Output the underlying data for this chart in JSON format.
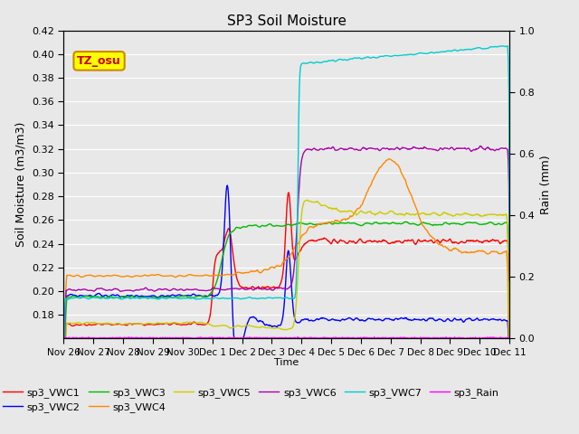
{
  "title": "SP3 Soil Moisture",
  "ylabel_left": "Soil Moisture (m3/m3)",
  "ylabel_right": "Rain (mm)",
  "xlabel": "Time",
  "ylim_left": [
    0.16,
    0.42
  ],
  "ylim_right": [
    0.0,
    1.0
  ],
  "bg_color": "#e8e8e8",
  "tz_label": "TZ_osu",
  "tz_box_color": "#ffff00",
  "tz_text_color": "#cc0000",
  "tz_border_color": "#cc8800",
  "series_colors": {
    "sp3_VWC1": "#ff0000",
    "sp3_VWC2": "#0000ff",
    "sp3_VWC3": "#00bb00",
    "sp3_VWC4": "#ff8800",
    "sp3_VWC5": "#cccc00",
    "sp3_VWC6": "#aa00aa",
    "sp3_VWC7": "#00cccc",
    "sp3_Rain": "#ff00ff"
  },
  "x_tick_labels": [
    "Nov 26",
    "Nov 27",
    "Nov 28",
    "Nov 29",
    "Nov 30",
    "Dec 1",
    "Dec 2",
    "Dec 3",
    "Dec 4",
    "Dec 5",
    "Dec 6",
    "Dec 7",
    "Dec 8",
    "Dec 9",
    "Dec 10",
    "Dec 11"
  ],
  "x_tick_positions": [
    0,
    1,
    2,
    3,
    4,
    5,
    6,
    7,
    8,
    9,
    10,
    11,
    12,
    13,
    14,
    15
  ],
  "yticks_left": [
    0.18,
    0.2,
    0.22,
    0.24,
    0.26,
    0.28,
    0.3,
    0.32,
    0.34,
    0.36,
    0.38,
    0.4,
    0.42
  ],
  "yticks_right": [
    0.0,
    0.2,
    0.4,
    0.6,
    0.8,
    1.0
  ],
  "grid_color": "#ffffff",
  "linewidth": 1.0
}
